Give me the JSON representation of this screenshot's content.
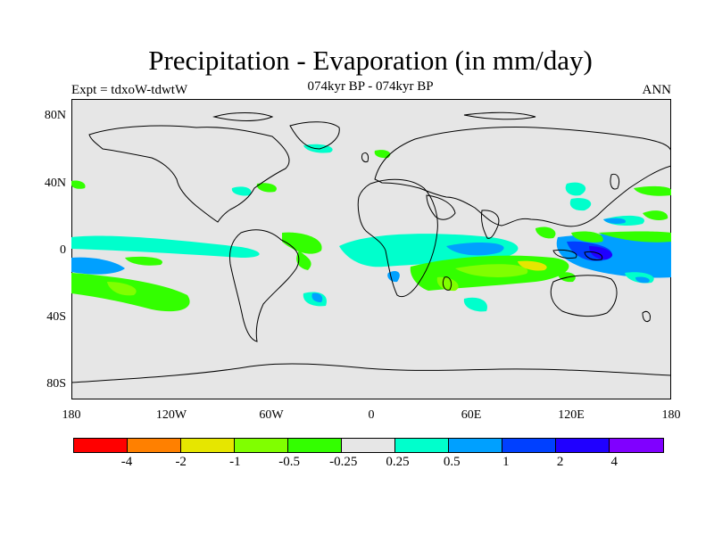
{
  "title": "Precipitation - Evaporation (in mm/day)",
  "subtitle": "074kyr BP - 074kyr BP",
  "expt_label": "Expt = tdxoW-tdwtW",
  "period_label": "ANN",
  "lat_ticks": [
    "80N",
    "40N",
    "0",
    "40S",
    "80S"
  ],
  "lon_ticks": [
    "180",
    "120W",
    "60W",
    "0",
    "60E",
    "120E",
    "180"
  ],
  "colorbar": {
    "labels": [
      "-4",
      "-2",
      "-1",
      "-0.5",
      "-0.25",
      "0.25",
      "0.5",
      "1",
      "2",
      "4"
    ],
    "colors": [
      "#ff0000",
      "#ff8000",
      "#e6e600",
      "#80ff00",
      "#33ff00",
      "#e6e6e6",
      "#00ffcc",
      "#00a0ff",
      "#0040ff",
      "#2000ff",
      "#8000ff"
    ]
  },
  "colors": {
    "background": "#e6e6e6",
    "coast": "#000000"
  }
}
